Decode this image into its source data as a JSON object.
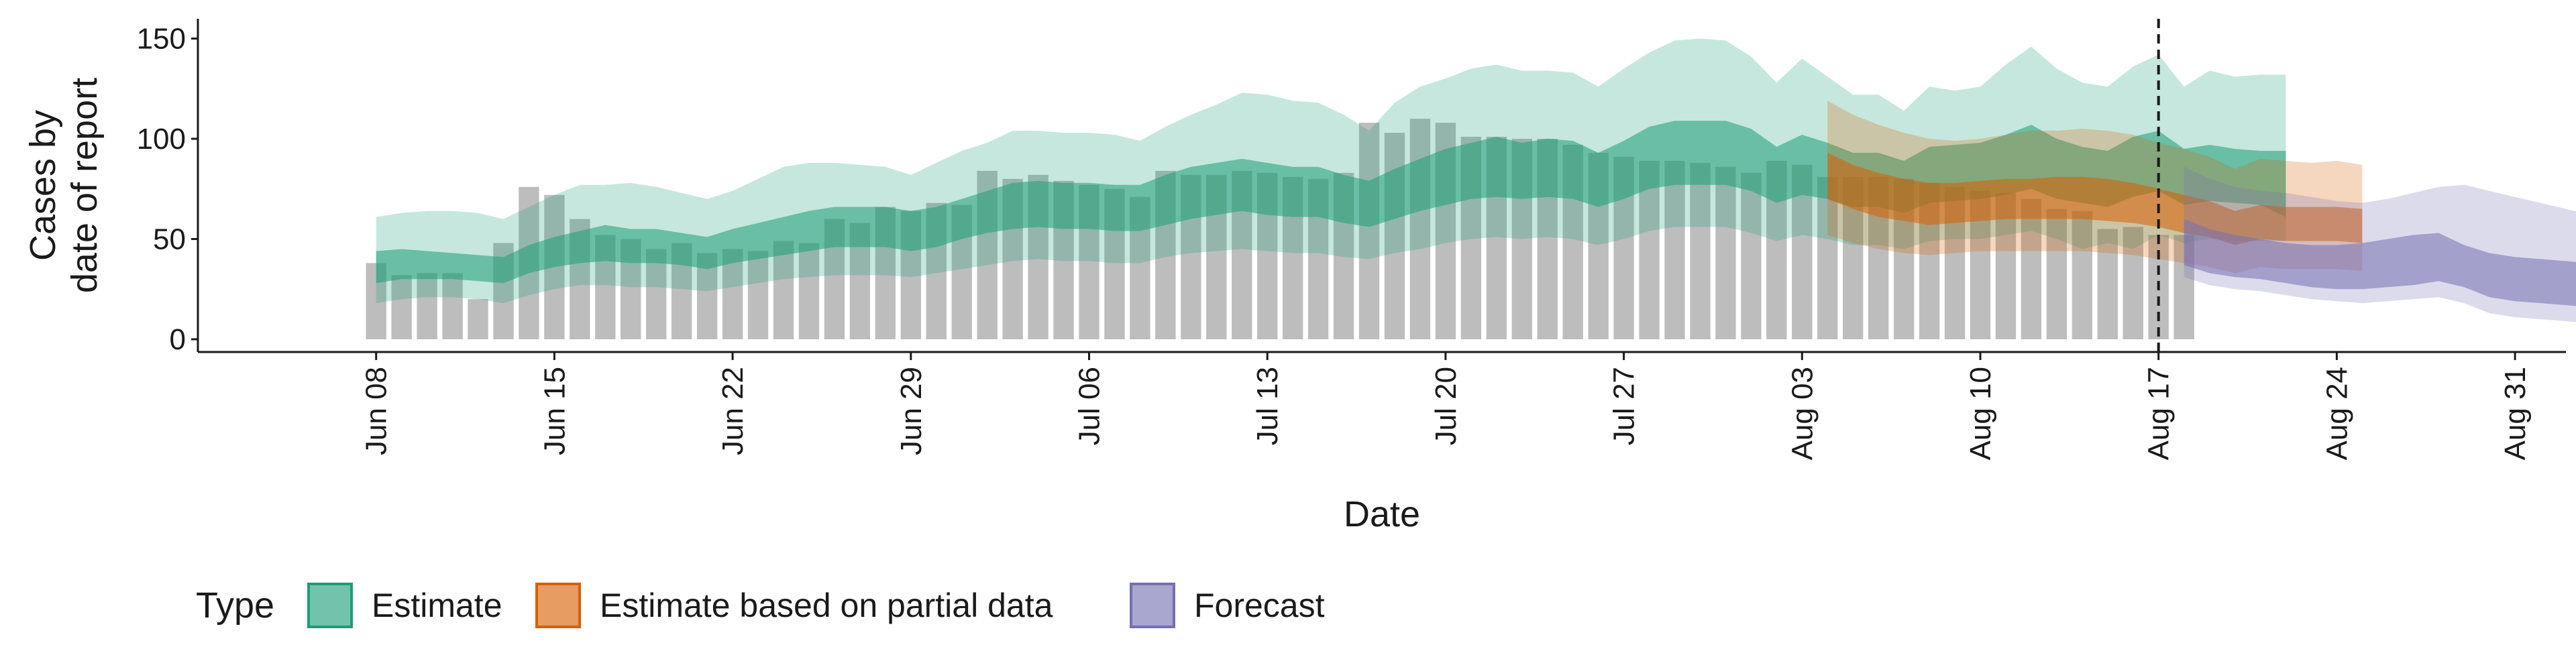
{
  "chart_data": {
    "type": "area",
    "xlabel": "Date",
    "ylabel_lines": [
      "Cases by",
      "date of report"
    ],
    "ylim": [
      0,
      160
    ],
    "y_ticks": [
      0,
      50,
      100,
      150
    ],
    "x_ticks": [
      "Jun 08",
      "Jun 15",
      "Jun 22",
      "Jun 29",
      "Jul 06",
      "Jul 13",
      "Jul 20",
      "Jul 27",
      "Aug 03",
      "Aug 10",
      "Aug 17",
      "Aug 24",
      "Aug 31"
    ],
    "x_range": [
      "2020-06-01",
      "2020-09-02"
    ],
    "vline_date": "2020-08-17",
    "legend": {
      "position": "bottom",
      "title": "Type",
      "items": [
        "Estimate",
        "Estimate based on partial data",
        "Forecast"
      ]
    },
    "colors": {
      "Estimate": "#1b9e77",
      "Estimate based on partial data": "#d95f02",
      "Forecast": "#7570b3",
      "bars": "#bdbdbd"
    },
    "bars": {
      "name": "Reported cases",
      "start_date": "2020-06-08",
      "values": [
        38,
        32,
        33,
        33,
        20,
        48,
        76,
        72,
        60,
        52,
        50,
        45,
        48,
        43,
        45,
        44,
        49,
        48,
        60,
        58,
        66,
        64,
        68,
        67,
        84,
        80,
        82,
        79,
        77,
        75,
        71,
        84,
        82,
        82,
        84,
        83,
        81,
        80,
        83,
        108,
        103,
        110,
        108,
        101,
        101,
        100,
        100,
        97,
        93,
        91,
        89,
        89,
        88,
        86,
        83,
        89,
        87,
        81,
        81,
        81,
        80,
        78,
        76,
        74,
        73,
        70,
        65,
        64,
        55,
        56,
        52,
        52
      ]
    },
    "series": [
      {
        "name": "Estimate",
        "start_date": "2020-06-08",
        "outer_upper": [
          61,
          63,
          64,
          64,
          63,
          60,
          66,
          72,
          77,
          77,
          78,
          76,
          73,
          70,
          74,
          80,
          86,
          88,
          88,
          87,
          86,
          82,
          88,
          94,
          98,
          104,
          104,
          103,
          103,
          102,
          99,
          106,
          112,
          117,
          123,
          122,
          119,
          118,
          112,
          104,
          118,
          126,
          130,
          135,
          137,
          134,
          134,
          133,
          126,
          135,
          143,
          149,
          150,
          149,
          141,
          128,
          140,
          131,
          122,
          122,
          114,
          126,
          124,
          126,
          137,
          146,
          135,
          128,
          126,
          136,
          142,
          126,
          134,
          131,
          132,
          132
        ],
        "inner_upper": [
          44,
          45,
          44,
          43,
          42,
          41,
          47,
          51,
          54,
          57,
          55,
          55,
          53,
          51,
          55,
          58,
          61,
          64,
          66,
          66,
          66,
          64,
          66,
          70,
          74,
          78,
          79,
          78,
          78,
          77,
          77,
          82,
          86,
          88,
          90,
          88,
          86,
          86,
          82,
          79,
          85,
          90,
          95,
          98,
          101,
          98,
          100,
          99,
          93,
          99,
          106,
          109,
          109,
          109,
          105,
          96,
          102,
          98,
          93,
          93,
          89,
          96,
          97,
          98,
          102,
          107,
          100,
          96,
          94,
          101,
          104,
          95,
          97,
          95,
          94,
          94
        ],
        "inner_lower": [
          28,
          30,
          30,
          30,
          29,
          28,
          33,
          36,
          38,
          39,
          38,
          38,
          37,
          35,
          38,
          40,
          42,
          44,
          46,
          46,
          46,
          44,
          46,
          50,
          53,
          55,
          56,
          55,
          55,
          54,
          54,
          57,
          60,
          62,
          64,
          62,
          61,
          61,
          58,
          56,
          60,
          64,
          67,
          70,
          71,
          70,
          71,
          70,
          66,
          70,
          75,
          77,
          77,
          77,
          74,
          68,
          72,
          70,
          66,
          66,
          63,
          68,
          69,
          70,
          72,
          75,
          70,
          68,
          66,
          71,
          74,
          67,
          69,
          68,
          67,
          61
        ],
        "outer_lower": [
          18,
          20,
          21,
          21,
          20,
          18,
          22,
          25,
          27,
          27,
          26,
          26,
          25,
          24,
          26,
          28,
          30,
          31,
          32,
          32,
          32,
          31,
          33,
          35,
          37,
          39,
          40,
          39,
          39,
          38,
          38,
          41,
          43,
          44,
          45,
          44,
          43,
          43,
          41,
          40,
          43,
          45,
          48,
          50,
          51,
          50,
          51,
          50,
          47,
          50,
          54,
          56,
          56,
          56,
          53,
          49,
          52,
          50,
          47,
          47,
          45,
          49,
          50,
          50,
          52,
          54,
          50,
          45,
          48,
          45,
          52,
          48,
          50,
          49,
          49,
          49
        ]
      },
      {
        "name": "Estimate based on partial data",
        "start_date": "2020-08-04",
        "outer_upper": [
          119,
          112,
          107,
          103,
          100,
          99,
          100,
          102,
          104,
          104,
          105,
          104,
          102,
          98,
          95,
          91,
          85,
          90,
          89,
          88,
          89,
          87
        ],
        "inner_upper": [
          93,
          87,
          83,
          80,
          78,
          78,
          79,
          80,
          80,
          81,
          81,
          80,
          78,
          75,
          72,
          69,
          64,
          67,
          66,
          66,
          66,
          65
        ],
        "inner_lower": [
          70,
          65,
          61,
          59,
          57,
          58,
          59,
          60,
          60,
          60,
          60,
          59,
          58,
          56,
          53,
          51,
          47,
          50,
          49,
          49,
          49,
          48
        ],
        "outer_lower": [
          52,
          48,
          45,
          43,
          42,
          43,
          44,
          44,
          44,
          44,
          44,
          43,
          42,
          40,
          38,
          36,
          33,
          36,
          35,
          35,
          35,
          34
        ]
      },
      {
        "name": "Forecast",
        "start_date": "2020-08-18",
        "outer_upper": [
          86,
          80,
          76,
          74,
          73,
          71,
          69,
          68,
          70,
          73,
          76,
          77,
          74,
          71,
          68,
          65,
          62,
          65,
          67,
          68,
          70
        ],
        "inner_upper": [
          60,
          55,
          52,
          50,
          48,
          47,
          47,
          48,
          50,
          52,
          53,
          47,
          43,
          41,
          40,
          39,
          38,
          38,
          38,
          37,
          37
        ],
        "inner_lower": [
          37,
          33,
          31,
          30,
          28,
          26,
          25,
          25,
          26,
          27,
          29,
          26,
          21,
          19,
          18,
          17,
          16,
          16,
          16,
          16,
          16
        ],
        "outer_lower": [
          31,
          27,
          25,
          24,
          22,
          20,
          19,
          18,
          19,
          20,
          21,
          18,
          13,
          11,
          10,
          9,
          8,
          8,
          8,
          7,
          7
        ]
      }
    ]
  }
}
